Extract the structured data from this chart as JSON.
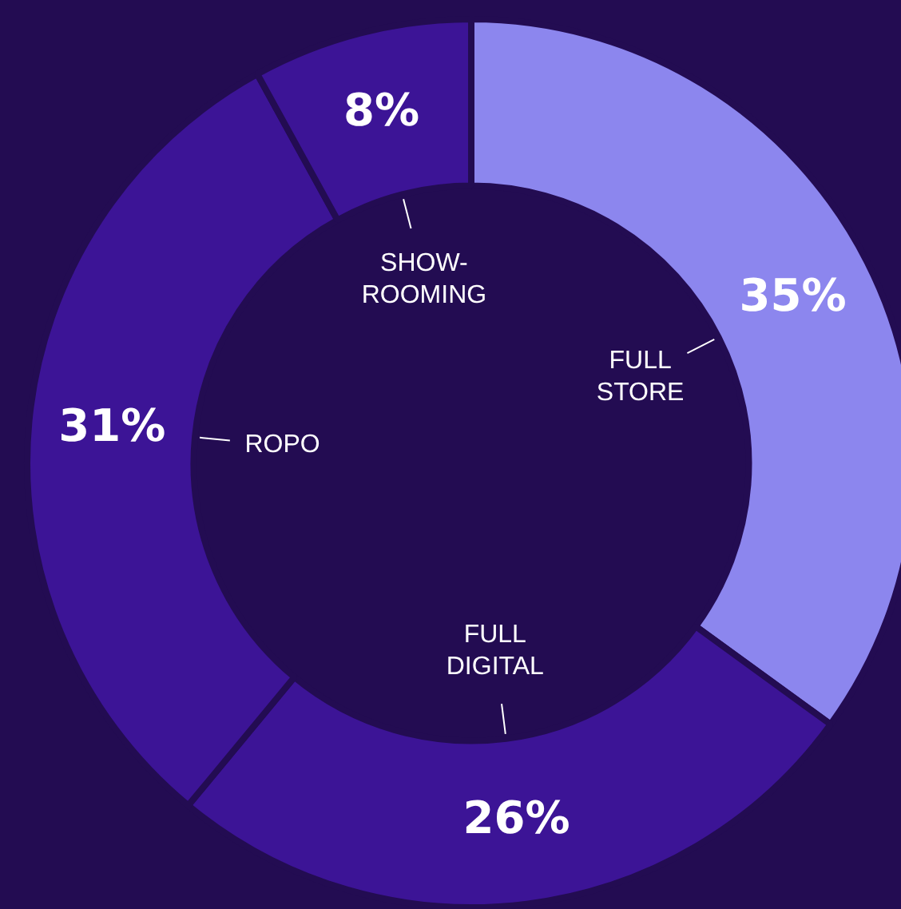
{
  "chart_data": {
    "type": "donut",
    "categories": [
      "FULL STORE",
      "FULL DIGITAL",
      "ROPO",
      "SHOW-ROOMING"
    ],
    "values": [
      35,
      26,
      31,
      8
    ],
    "colors": [
      "#8c86ee",
      "#3c1496",
      "#3c1496",
      "#3c1496"
    ],
    "value_labels": [
      "35%",
      "26%",
      "31%",
      "8%"
    ],
    "legend": false
  }
}
